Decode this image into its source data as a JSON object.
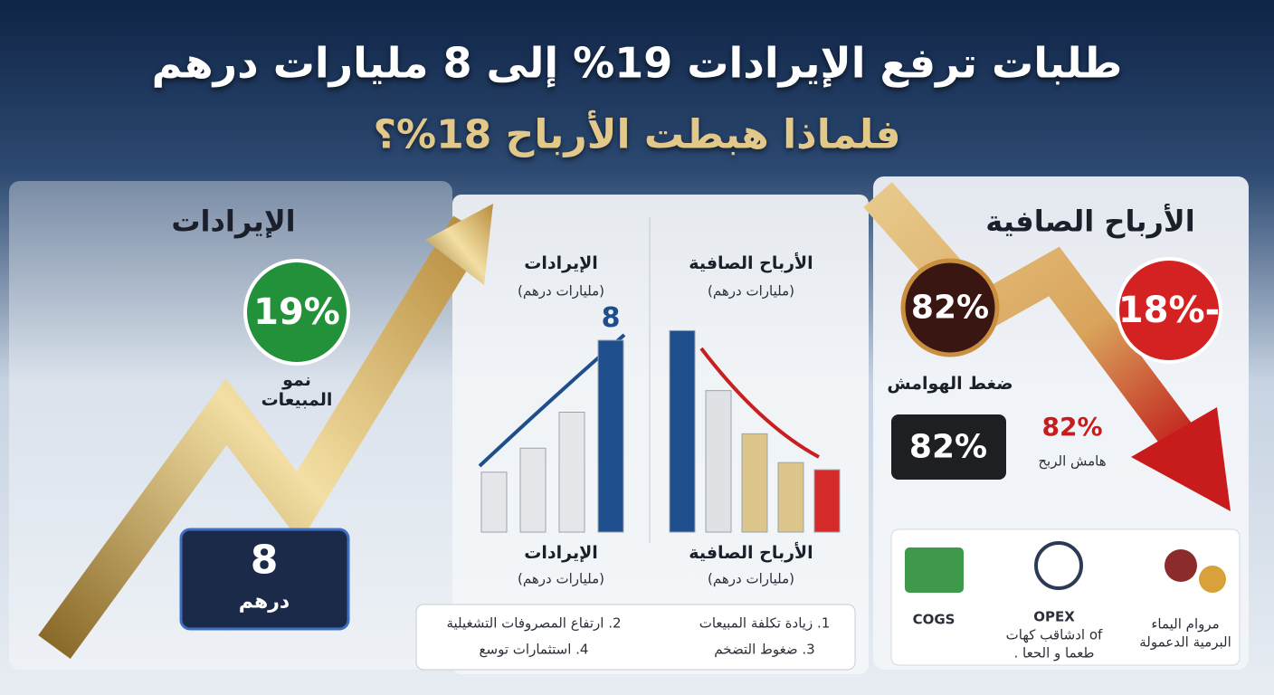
{
  "header": {
    "title": "طلبات ترفع الإيرادات 19% إلى 8 مليارات درهم",
    "subtitle": "فلماذا هبطت الأرباح 18%؟"
  },
  "revenue_panel": {
    "title": "الإيرادات",
    "growth": "19%",
    "growth_label": "نمو المبيعات",
    "counter_value": "8",
    "counter_unit": "درهم"
  },
  "center_panel": {
    "revenue_chart": {
      "title": "الإيرادات",
      "unit": "(مليارات درهم)",
      "value_label": "8",
      "values": [
        2.5,
        3.5,
        5,
        8
      ],
      "colors": [
        "#e4e6ea",
        "#e4e6ea",
        "#e4e6ea",
        "#1f4e8c"
      ],
      "footer_title": "الإيرادات",
      "footer_unit": "(مليارات درهم)"
    },
    "profit_chart": {
      "title": "الأرباح الصافية",
      "unit": "(مليارات درهم)",
      "values": [
        8.4,
        5.9,
        4.1,
        2.9,
        2.6
      ],
      "colors": [
        "#1f4e8c",
        "#dfe1e5",
        "#dcc58a",
        "#dcc58a",
        "#d42a2a"
      ],
      "footer_title": "الأرباح الصافية",
      "footer_unit": "(مليارات درهم)"
    },
    "reasons": [
      "1. زيادة تكلفة المبيعات",
      "2. ارتفاع المصروفات التشغيلية",
      "3. ضغوط التضخم",
      "4. استثمارات توسع"
    ]
  },
  "profit_panel": {
    "title": "الأرباح الصافية",
    "change": "-18%",
    "margin_circle": "82%",
    "margin_pressure": "ضغط الهوامش",
    "counter": "82%",
    "margin_value": "82%",
    "margin_label": "هامش الربح",
    "factors": [
      "COGS",
      "OPEX",
      "of ادشاقب كهات",
      "طعما و الحعا .",
      "مروام اليماء",
      "البرمية الدعمولة"
    ]
  }
}
